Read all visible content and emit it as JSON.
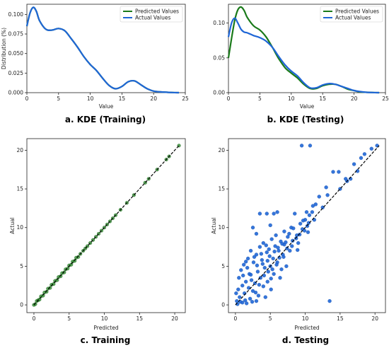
{
  "colors": {
    "predicted": "#1a7a1a",
    "actual": "#1f66d6",
    "scatter_train": "#2e8b2e",
    "scatter_test": "#1f66d6",
    "ideal_line": "#000000"
  },
  "chart_data": [
    {
      "id": "a",
      "type": "line",
      "caption": "a. KDE (Training)",
      "xlabel": "Value",
      "ylabel": "Distribution (%)",
      "xlim": [
        0,
        25
      ],
      "ylim": [
        0,
        0.113
      ],
      "xticks": [
        "0",
        "5",
        "10",
        "15",
        "20",
        "25"
      ],
      "yticks": [
        "0.000",
        "0.025",
        "0.050",
        "0.075",
        "0.100"
      ],
      "legend": {
        "position": "top-right",
        "entries": [
          "Predicted Values",
          "Actual Values"
        ]
      },
      "series": [
        {
          "name": "Predicted Values",
          "x": [
            0,
            0.5,
            1,
            1.5,
            2,
            3,
            4,
            5,
            6,
            7,
            8,
            9,
            10,
            11,
            12,
            13,
            14,
            15,
            16,
            17,
            18,
            19,
            20,
            21,
            22,
            23,
            24
          ],
          "y": [
            0.085,
            0.102,
            0.109,
            0.104,
            0.092,
            0.081,
            0.08,
            0.082,
            0.079,
            0.069,
            0.058,
            0.046,
            0.036,
            0.028,
            0.018,
            0.009,
            0.005,
            0.008,
            0.014,
            0.015,
            0.01,
            0.005,
            0.002,
            0.001,
            0.0005,
            0.0002,
            0
          ]
        },
        {
          "name": "Actual Values",
          "x": [
            0,
            0.5,
            1,
            1.5,
            2,
            3,
            4,
            5,
            6,
            7,
            8,
            9,
            10,
            11,
            12,
            13,
            14,
            15,
            16,
            17,
            18,
            19,
            20,
            21,
            22,
            23,
            24
          ],
          "y": [
            0.085,
            0.102,
            0.109,
            0.104,
            0.092,
            0.081,
            0.08,
            0.082,
            0.079,
            0.069,
            0.058,
            0.046,
            0.036,
            0.028,
            0.018,
            0.009,
            0.005,
            0.008,
            0.014,
            0.015,
            0.01,
            0.005,
            0.002,
            0.001,
            0.0005,
            0.0002,
            0
          ]
        }
      ]
    },
    {
      "id": "b",
      "type": "line",
      "caption": "b. KDE (Testing)",
      "xlabel": "Value",
      "ylabel": "",
      "xlim": [
        0,
        25
      ],
      "ylim": [
        0,
        0.127
      ],
      "xticks": [
        "0",
        "5",
        "10",
        "15",
        "20",
        "25"
      ],
      "yticks": [
        "0.00",
        "0.05",
        "0.10"
      ],
      "legend": {
        "position": "top-right",
        "entries": [
          "Predicted Values",
          "Actual Values"
        ]
      },
      "series": [
        {
          "name": "Predicted Values",
          "x": [
            0,
            0.5,
            1,
            1.5,
            2,
            2.5,
            3,
            4,
            5,
            6,
            7,
            8,
            9,
            10,
            11,
            12,
            13,
            14,
            15,
            16,
            17,
            18,
            19,
            20,
            21,
            22,
            23,
            24
          ],
          "y": [
            0.05,
            0.078,
            0.104,
            0.119,
            0.123,
            0.118,
            0.108,
            0.096,
            0.09,
            0.08,
            0.065,
            0.049,
            0.036,
            0.028,
            0.021,
            0.012,
            0.006,
            0.006,
            0.01,
            0.012,
            0.012,
            0.009,
            0.005,
            0.003,
            0.001,
            0.0005,
            0.0002,
            0
          ]
        },
        {
          "name": "Actual Values",
          "x": [
            0,
            0.5,
            1,
            1.5,
            2,
            2.5,
            3,
            4,
            5,
            6,
            7,
            8,
            9,
            10,
            11,
            12,
            13,
            14,
            15,
            16,
            17,
            18,
            19,
            20,
            21,
            22,
            23,
            24
          ],
          "y": [
            0.08,
            0.1,
            0.107,
            0.1,
            0.091,
            0.087,
            0.086,
            0.082,
            0.079,
            0.074,
            0.065,
            0.052,
            0.04,
            0.031,
            0.024,
            0.014,
            0.007,
            0.007,
            0.011,
            0.013,
            0.012,
            0.009,
            0.006,
            0.003,
            0.0015,
            0.0005,
            0.0002,
            0
          ]
        }
      ]
    },
    {
      "id": "c",
      "type": "scatter",
      "caption": "c. Training",
      "xlabel": "Predicted",
      "ylabel": "Actual",
      "xlim": [
        -1,
        21.5
      ],
      "ylim": [
        -1,
        21.5
      ],
      "xticks": [
        "0",
        "5",
        "10",
        "15",
        "20"
      ],
      "yticks": [
        "0",
        "5",
        "10",
        "15",
        "20"
      ],
      "reference_line": [
        [
          0,
          0
        ],
        [
          20.6,
          20.6
        ]
      ],
      "points": [
        [
          0,
          0
        ],
        [
          0.2,
          0.1
        ],
        [
          0.4,
          0.5
        ],
        [
          0.6,
          0.6
        ],
        [
          0.8,
          0.7
        ],
        [
          1,
          1.1
        ],
        [
          1.3,
          1.2
        ],
        [
          1.5,
          1.6
        ],
        [
          1.8,
          1.7
        ],
        [
          2,
          2.1
        ],
        [
          2.3,
          2.2
        ],
        [
          2.5,
          2.6
        ],
        [
          2.8,
          2.7
        ],
        [
          3,
          3.1
        ],
        [
          3.3,
          3.2
        ],
        [
          3.5,
          3.6
        ],
        [
          3.8,
          3.7
        ],
        [
          4,
          4.1
        ],
        [
          4.3,
          4.2
        ],
        [
          4.5,
          4.6
        ],
        [
          4.8,
          4.7
        ],
        [
          5,
          5.1
        ],
        [
          5.3,
          5.2
        ],
        [
          5.5,
          5.6
        ],
        [
          5.8,
          5.7
        ],
        [
          6,
          6.1
        ],
        [
          6.3,
          6.2
        ],
        [
          6.6,
          6.6
        ],
        [
          7,
          7
        ],
        [
          7.3,
          7.3
        ],
        [
          7.6,
          7.6
        ],
        [
          8,
          8
        ],
        [
          8.4,
          8.4
        ],
        [
          8.8,
          8.8
        ],
        [
          9.2,
          9.2
        ],
        [
          9.6,
          9.6
        ],
        [
          10,
          10
        ],
        [
          10.4,
          10.4
        ],
        [
          10.8,
          10.8
        ],
        [
          11.2,
          11.2
        ],
        [
          11.6,
          11.6
        ],
        [
          12.3,
          12.3
        ],
        [
          13.2,
          13.2
        ],
        [
          14.2,
          14.2
        ],
        [
          15.8,
          15.8
        ],
        [
          16.3,
          16.3
        ],
        [
          17.5,
          17.5
        ],
        [
          18.8,
          18.8
        ],
        [
          19.2,
          19.2
        ],
        [
          20.6,
          20.6
        ]
      ]
    },
    {
      "id": "d",
      "type": "scatter",
      "caption": "d. Testing",
      "xlabel": "Predicted",
      "ylabel": "Actual",
      "xlim": [
        -1,
        21.5
      ],
      "ylim": [
        -1,
        21.5
      ],
      "xticks": [
        "0",
        "5",
        "10",
        "15",
        "20"
      ],
      "yticks": [
        "0",
        "5",
        "10",
        "15",
        "20"
      ],
      "reference_line": [
        [
          0,
          0
        ],
        [
          20.6,
          20.6
        ]
      ],
      "points": [
        [
          0.2,
          0.5
        ],
        [
          0.4,
          2
        ],
        [
          0.5,
          3.5
        ],
        [
          0.6,
          1
        ],
        [
          0.8,
          4.5
        ],
        [
          1,
          2.5
        ],
        [
          1,
          0.3
        ],
        [
          1.2,
          5.2
        ],
        [
          1.3,
          1.5
        ],
        [
          1.5,
          3
        ],
        [
          1.6,
          0.2
        ],
        [
          1.8,
          6
        ],
        [
          1.9,
          2.2
        ],
        [
          2,
          4
        ],
        [
          2.1,
          0.8
        ],
        [
          2.2,
          7
        ],
        [
          2.3,
          3.2
        ],
        [
          2.5,
          1.8
        ],
        [
          2.6,
          5.5
        ],
        [
          2.8,
          2.8
        ],
        [
          3,
          6.5
        ],
        [
          3,
          0.5
        ],
        [
          3.2,
          4.3
        ],
        [
          3.3,
          1.2
        ],
        [
          3.5,
          7.5
        ],
        [
          3.6,
          3.5
        ],
        [
          3.8,
          5.8
        ],
        [
          4,
          2.4
        ],
        [
          4,
          8
        ],
        [
          4.2,
          4.8
        ],
        [
          4.3,
          1
        ],
        [
          4.5,
          6.8
        ],
        [
          4.6,
          3
        ],
        [
          4.8,
          7.2
        ],
        [
          5,
          5
        ],
        [
          5.1,
          2
        ],
        [
          5.2,
          8.5
        ],
        [
          5.4,
          6
        ],
        [
          5.5,
          4
        ],
        [
          5.7,
          7.6
        ],
        [
          5.8,
          9
        ],
        [
          6,
          5.5
        ],
        [
          6.2,
          7
        ],
        [
          6.4,
          3.5
        ],
        [
          6.5,
          8.2
        ],
        [
          6.8,
          6.5
        ],
        [
          7,
          9.5
        ],
        [
          7,
          7.8
        ],
        [
          7.3,
          5
        ],
        [
          7.5,
          8.8
        ],
        [
          7.8,
          7
        ],
        [
          8,
          10
        ],
        [
          8.2,
          8.3
        ],
        [
          8.5,
          11.8
        ],
        [
          8.8,
          9
        ],
        [
          9,
          8
        ],
        [
          9.3,
          10.5
        ],
        [
          9.6,
          9.8
        ],
        [
          10,
          11
        ],
        [
          10.3,
          10.2
        ],
        [
          10.6,
          11.6
        ],
        [
          11,
          12
        ],
        [
          11.5,
          13
        ],
        [
          3.5,
          11.8
        ],
        [
          4.5,
          11.8
        ],
        [
          5.5,
          11.8
        ],
        [
          6,
          12
        ],
        [
          2.5,
          10
        ],
        [
          3,
          9.2
        ],
        [
          5,
          10.3
        ],
        [
          9.5,
          20.6
        ],
        [
          10.7,
          20.6
        ],
        [
          13,
          15.2
        ],
        [
          14,
          17.2
        ],
        [
          14.8,
          17.2
        ],
        [
          15.8,
          16.3
        ],
        [
          16.5,
          16.3
        ],
        [
          17,
          18.2
        ],
        [
          18,
          19
        ],
        [
          18.5,
          19.5
        ],
        [
          19.5,
          20.2
        ],
        [
          20.3,
          20.6
        ],
        [
          13.5,
          0.5
        ],
        [
          12,
          14
        ],
        [
          13.2,
          14.2
        ],
        [
          15,
          15
        ],
        [
          16,
          16
        ],
        [
          17.5,
          17.3
        ],
        [
          0.3,
          0.1
        ],
        [
          0.7,
          0.4
        ],
        [
          1.4,
          0.6
        ],
        [
          2.4,
          0.4
        ],
        [
          2.9,
          1.6
        ],
        [
          3.4,
          2.6
        ],
        [
          4.1,
          3.8
        ],
        [
          4.7,
          4.3
        ],
        [
          5.3,
          4.6
        ],
        [
          5.9,
          5.2
        ],
        [
          6.3,
          6.1
        ],
        [
          6.9,
          6.2
        ],
        [
          7.4,
          7.3
        ],
        [
          8.1,
          7.6
        ],
        [
          8.7,
          8.6
        ],
        [
          9.2,
          9.1
        ],
        [
          9.9,
          9.6
        ],
        [
          10.5,
          10.6
        ],
        [
          11.3,
          11
        ],
        [
          12.5,
          12.6
        ],
        [
          0.1,
          1.5
        ],
        [
          1.1,
          3.8
        ],
        [
          1.7,
          4.8
        ],
        [
          2.7,
          6.2
        ],
        [
          3.1,
          5.1
        ],
        [
          3.7,
          6.6
        ],
        [
          4.4,
          7.7
        ],
        [
          4.9,
          6.3
        ],
        [
          5.6,
          6.9
        ],
        [
          6.1,
          7.4
        ],
        [
          6.7,
          7.9
        ],
        [
          7.2,
          8.1
        ],
        [
          7.7,
          9.2
        ],
        [
          8.3,
          9.9
        ],
        [
          9.7,
          10.9
        ],
        [
          10.2,
          12
        ],
        [
          11.1,
          12.8
        ],
        [
          1.5,
          5.6
        ],
        [
          2.2,
          3.9
        ],
        [
          3.9,
          5.3
        ],
        [
          4.6,
          5.7
        ],
        [
          5.1,
          3.4
        ],
        [
          6.6,
          4.6
        ],
        [
          8.9,
          7.1
        ],
        [
          10.4,
          9.4
        ]
      ]
    }
  ]
}
